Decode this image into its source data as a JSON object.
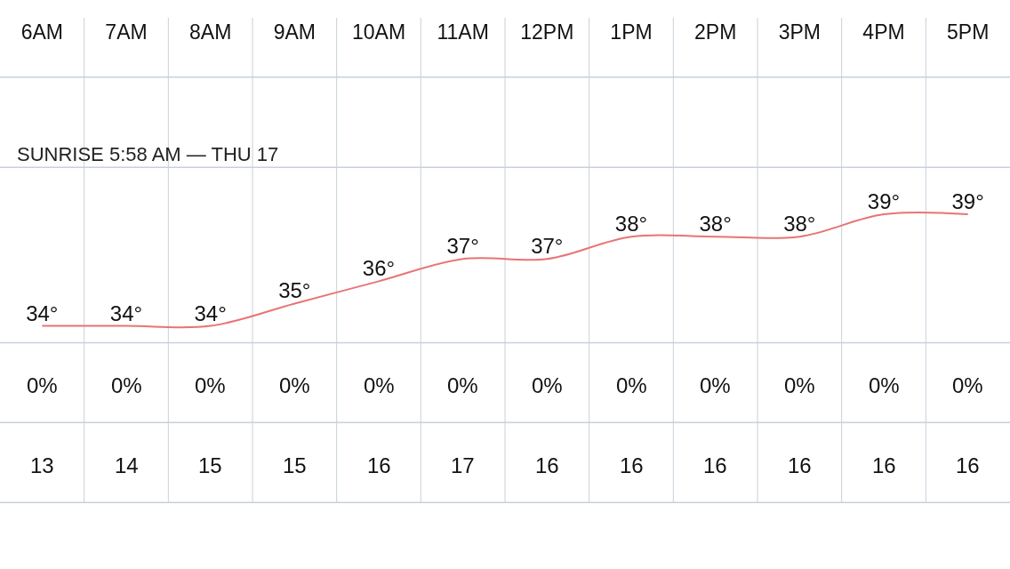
{
  "chart_data": {
    "type": "line",
    "categories": [
      "6AM",
      "7AM",
      "8AM",
      "9AM",
      "10AM",
      "11AM",
      "12PM",
      "1PM",
      "2PM",
      "3PM",
      "4PM",
      "5PM"
    ],
    "series": [
      {
        "color": "#e87474",
        "values": [
          34,
          34,
          34,
          35,
          36,
          37,
          37,
          38,
          38,
          38,
          39,
          39
        ],
        "value_labels": [
          "34°",
          "34°",
          "34°",
          "35°",
          "36°",
          "37°",
          "37°",
          "38°",
          "38°",
          "38°",
          "39°",
          "39°"
        ]
      }
    ],
    "marker": "none",
    "line_style": "solid",
    "tick_labels": "x",
    "annotations": [
      "SUNRISE 5:58 AM — THU 17",
      "0%",
      "0%",
      "0%",
      "0%",
      "0%",
      "0%",
      "0%",
      "0%",
      "0%",
      "0%",
      "0%",
      "0%",
      "13",
      "14",
      "15",
      "15",
      "16",
      "17",
      "16",
      "16",
      "16",
      "16",
      "16",
      "16"
    ]
  }
}
